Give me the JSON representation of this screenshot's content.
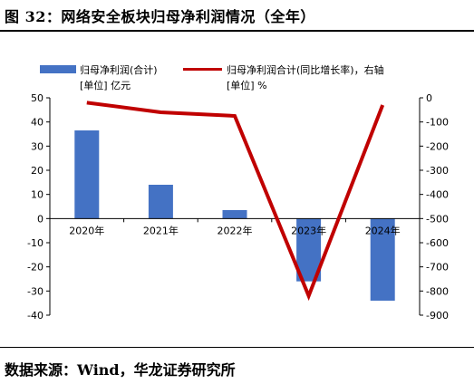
{
  "title": "图 32：网络安全板块归母净利润情况（全年）",
  "source": "数据来源：Wind，华龙证券研究所",
  "colors": {
    "bar": "#4472C4",
    "line": "#C00000",
    "axis": "#000000"
  },
  "chart_data": {
    "type": "bar+line",
    "categories": [
      "2020年",
      "2021年",
      "2022年",
      "2023年",
      "2024年"
    ],
    "series": [
      {
        "name": "归母净利润(合计)",
        "unit_label": "[单位] 亿元",
        "type": "bar",
        "axis": "left",
        "values": [
          36.5,
          14.0,
          3.5,
          -26.0,
          -34.0
        ]
      },
      {
        "name": "归母净利润合计(同比增长率)，右轴",
        "unit_label": "[单位] %",
        "type": "line",
        "axis": "right",
        "values": [
          -20,
          -60,
          -75,
          -820,
          -30
        ]
      }
    ],
    "y_left": {
      "min": -40,
      "max": 50,
      "step": 10,
      "ticks": [
        "50",
        "40",
        "30",
        "20",
        "10",
        "0",
        "-10",
        "-20",
        "-30",
        "-40"
      ]
    },
    "y_right": {
      "min": -900,
      "max": 0,
      "step": 100,
      "ticks": [
        "0",
        "-100",
        "-200",
        "-300",
        "-400",
        "-500",
        "-600",
        "-700",
        "-800",
        "-900"
      ]
    },
    "legend": "top"
  }
}
